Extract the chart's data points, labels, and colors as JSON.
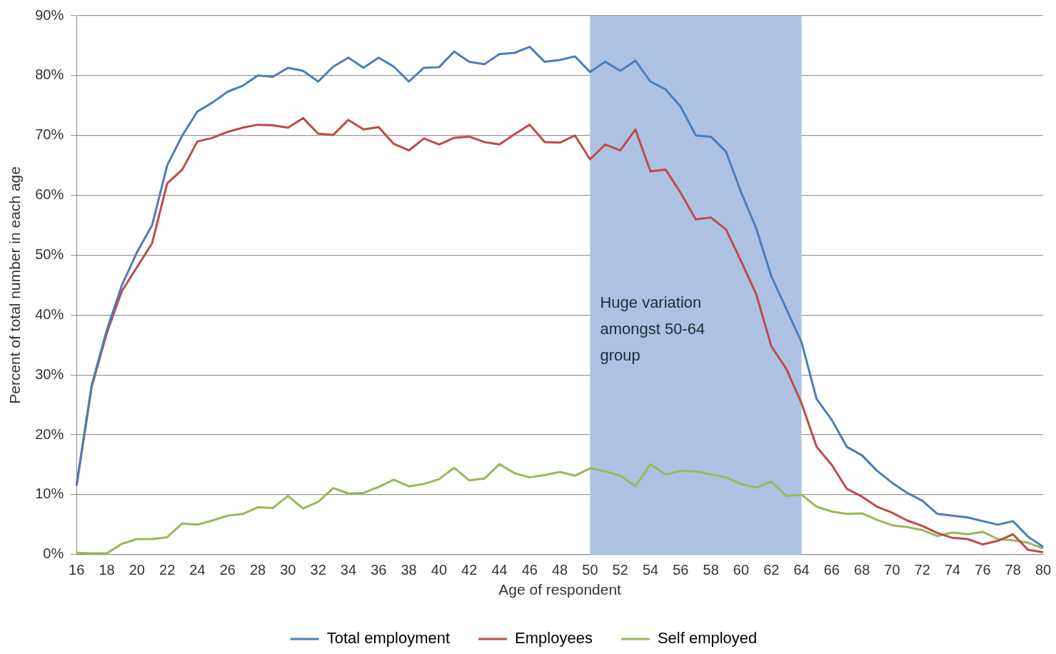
{
  "chart_data": {
    "type": "line",
    "xlabel": "Age of respondent",
    "ylabel": "Percent of total number in each age",
    "categories": [
      "16",
      null,
      "18",
      null,
      "20",
      null,
      "22",
      null,
      "24",
      null,
      "26",
      null,
      "28",
      null,
      "30",
      null,
      "32",
      null,
      "34",
      null,
      "36",
      null,
      "38",
      null,
      "40",
      null,
      "42",
      null,
      "44",
      null,
      "46",
      null,
      "48",
      null,
      "50",
      null,
      "52",
      null,
      "54",
      null,
      "56",
      null,
      "58",
      null,
      "60",
      null,
      "62",
      null,
      "64",
      null,
      "66",
      null,
      "68",
      null,
      "70",
      null,
      "72",
      null,
      "74",
      null,
      "76",
      null,
      "78",
      null,
      "80"
    ],
    "series": [
      {
        "name": "Total employment",
        "color": "#4a7ebb",
        "values": [
          11.7,
          28.3,
          37.5,
          45,
          50.5,
          55,
          65,
          70,
          74,
          75.5,
          77.3,
          78.3,
          80,
          79.8,
          81.3,
          80.8,
          79,
          81.5,
          83,
          81.3,
          83,
          81.5,
          79,
          81.3,
          81.4,
          84,
          82.3,
          81.9,
          83.6,
          83.8,
          84.8,
          82.3,
          82.6,
          83.2,
          80.6,
          82.3,
          80.8,
          82.5,
          79,
          77.7,
          74.8,
          70,
          69.8,
          67.3,
          60.5,
          54.5,
          46.5,
          41,
          35.5,
          26,
          22.5,
          18,
          16.6,
          14,
          12,
          10.3,
          9,
          6.8,
          6.5,
          6.2,
          5.6,
          5,
          5.6,
          3,
          1.3
        ]
      },
      {
        "name": "Employees",
        "color": "#be4b48",
        "values": [
          11.5,
          28,
          37,
          44,
          48,
          52,
          62,
          64.3,
          69,
          69.6,
          70.6,
          71.3,
          71.8,
          71.7,
          71.3,
          72.9,
          70.3,
          70.1,
          72.6,
          71,
          71.4,
          68.6,
          67.5,
          69.5,
          68.5,
          69.6,
          69.8,
          68.9,
          68.5,
          70.2,
          71.8,
          68.9,
          68.8,
          70,
          66,
          68.5,
          67.5,
          71,
          64,
          64.3,
          60.4,
          56,
          56.3,
          54.3,
          49,
          43.5,
          34.8,
          31,
          25.3,
          18,
          15,
          11,
          9.7,
          8,
          7,
          5.7,
          4.8,
          3.6,
          2.8,
          2.6,
          1.7,
          2.3,
          3.4,
          0.8,
          0.4
        ]
      },
      {
        "name": "Self employed",
        "color": "#98b954",
        "values": [
          0.3,
          0.2,
          0.2,
          1.8,
          2.6,
          2.6,
          2.9,
          5.2,
          5,
          5.7,
          6.5,
          6.8,
          7.9,
          7.8,
          9.8,
          7.7,
          8.8,
          11.1,
          10.2,
          10.3,
          11.3,
          12.5,
          11.4,
          11.8,
          12.6,
          14.5,
          12.4,
          12.7,
          15.1,
          13.6,
          12.9,
          13.3,
          13.8,
          13.2,
          14.4,
          13.9,
          13.2,
          11.4,
          15.1,
          13.4,
          14,
          13.9,
          13.4,
          12.9,
          11.8,
          11.2,
          12.2,
          9.8,
          10,
          8,
          7.2,
          6.8,
          6.9,
          5.8,
          4.9,
          4.6,
          4.1,
          3.1,
          3.7,
          3.4,
          3.8,
          2.6,
          2.4,
          2,
          1
        ]
      }
    ],
    "ylim": [
      0,
      90
    ],
    "yticks": [
      {
        "value": 0,
        "label": "0%"
      },
      {
        "value": 10,
        "label": "10%"
      },
      {
        "value": 20,
        "label": "20%"
      },
      {
        "value": 30,
        "label": "30%"
      },
      {
        "value": 40,
        "label": "40%"
      },
      {
        "value": 50,
        "label": "50%"
      },
      {
        "value": 60,
        "label": "60%"
      },
      {
        "value": 70,
        "label": "70%"
      },
      {
        "value": 80,
        "label": "80%"
      },
      {
        "value": 90,
        "label": "90%"
      }
    ],
    "bands": [
      {
        "axis": "x",
        "from": "50",
        "to": "64",
        "color": "#adc2e2"
      }
    ],
    "annotations": [
      {
        "text": "Huge variation amongst 50-64 group",
        "x": "50",
        "y": 42
      }
    ],
    "grid": "y",
    "legend": "bottom",
    "marker": "none",
    "line_style": "solid"
  }
}
